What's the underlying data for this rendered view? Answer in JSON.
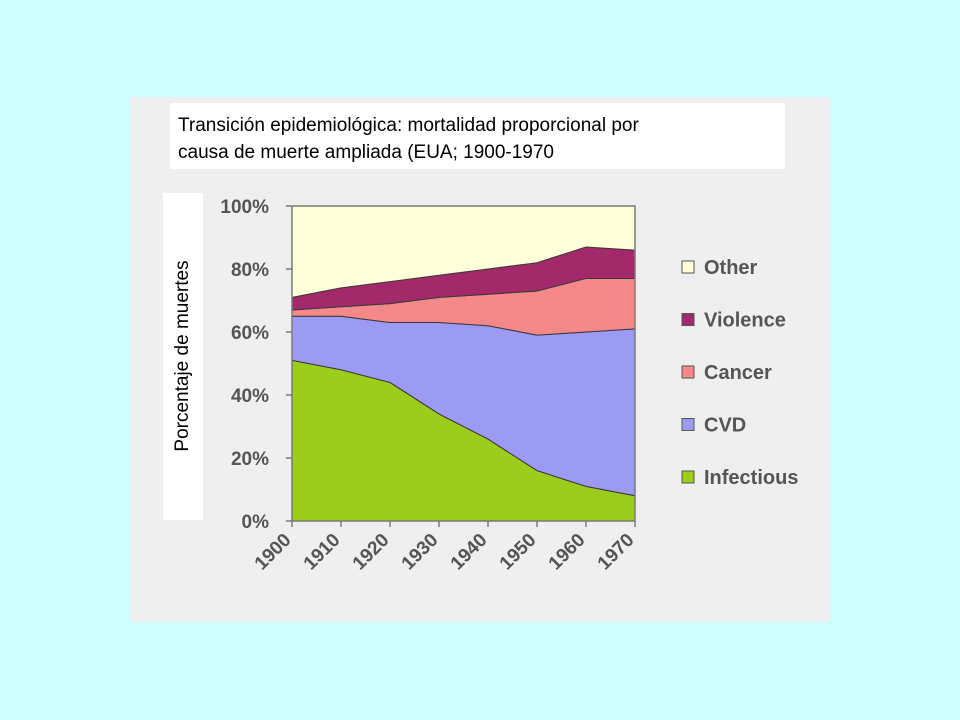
{
  "title": {
    "line1": "Transición epidemiológica:  mortalidad proporcional por",
    "line2": "causa de muerte ampliada (EUA; 1900-1970"
  },
  "colors": {
    "page_background": "#ccffff",
    "panel_background": "#efefef",
    "other": "#ffffd9",
    "violence": "#a3296a",
    "cancer": "#f58989",
    "cvd": "#9b9bf3",
    "infectious": "#9ccc1c"
  },
  "chart_data": {
    "type": "area",
    "stacked": true,
    "title": "Transición epidemiológica:  mortalidad proporcional por causa de muerte ampliada (EUA; 1900-1970",
    "xlabel": "",
    "ylabel": "Porcentaje de muertes",
    "x": [
      "1900",
      "1910",
      "1920",
      "1930",
      "1940",
      "1950",
      "1960",
      "1970"
    ],
    "ylim": [
      0,
      100
    ],
    "yticks": [
      "0%",
      "20%",
      "40%",
      "60%",
      "80%",
      "100%"
    ],
    "grid": false,
    "legend_position": "right",
    "series": [
      {
        "name": "Infectious",
        "color": "#9ccc1c",
        "values": [
          51,
          48,
          44,
          34,
          26,
          16,
          11,
          8
        ]
      },
      {
        "name": "CVD",
        "color": "#9b9bf3",
        "values": [
          14,
          17,
          19,
          29,
          36,
          43,
          49,
          53
        ]
      },
      {
        "name": "Cancer",
        "color": "#f58989",
        "values": [
          2,
          3,
          6,
          8,
          10,
          14,
          17,
          16
        ]
      },
      {
        "name": "Violence",
        "color": "#a3296a",
        "values": [
          4,
          6,
          7,
          7,
          8,
          9,
          10,
          9
        ]
      },
      {
        "name": "Other",
        "color": "#ffffd9",
        "values": [
          29,
          26,
          24,
          22,
          20,
          18,
          13,
          14
        ]
      }
    ]
  }
}
